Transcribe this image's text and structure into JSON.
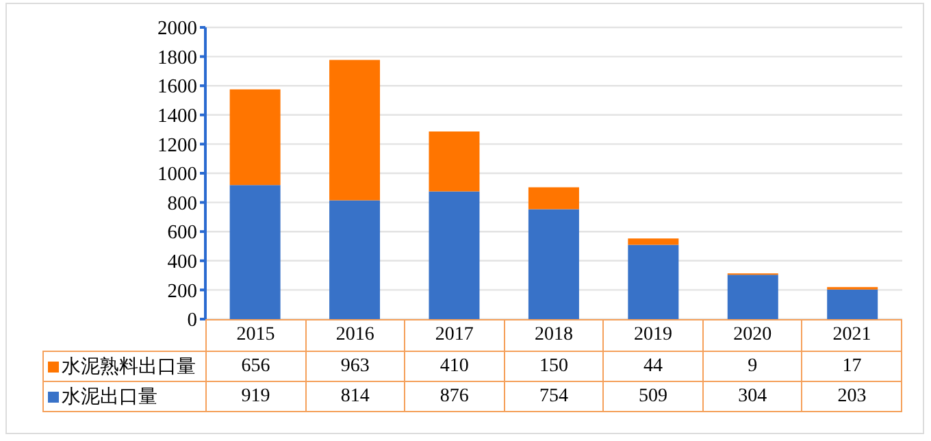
{
  "chart_data": {
    "type": "bar",
    "stacked": true,
    "categories": [
      "2015",
      "2016",
      "2017",
      "2018",
      "2019",
      "2020",
      "2021"
    ],
    "series": [
      {
        "name": "水泥出口量",
        "color": "#3872c8",
        "values": [
          919,
          814,
          876,
          754,
          509,
          304,
          203
        ]
      },
      {
        "name": "水泥熟料出口量",
        "color": "#ff7500",
        "values": [
          656,
          963,
          410,
          150,
          44,
          9,
          17
        ]
      }
    ],
    "ylim": [
      0,
      2000
    ],
    "yticks": [
      0,
      200,
      400,
      600,
      800,
      1000,
      1200,
      1400,
      1600,
      1800,
      2000
    ],
    "grid": "y",
    "legend": "bottom",
    "data_labels": true
  }
}
